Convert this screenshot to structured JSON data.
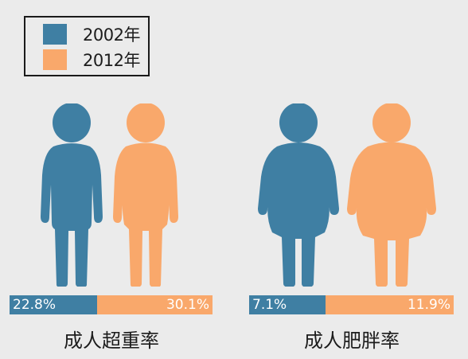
{
  "colors": {
    "y2002": "#3f7fa3",
    "y2012": "#f9a86b"
  },
  "legend": {
    "items": [
      {
        "label": "2002年",
        "color": "#3f7fa3"
      },
      {
        "label": "2012年",
        "color": "#f9a86b"
      }
    ]
  },
  "chart_data": [
    {
      "type": "bar",
      "title": "成人超重率",
      "categories": [
        "2002年",
        "2012年"
      ],
      "values": [
        22.8,
        30.1
      ],
      "value_labels": [
        "22.8%",
        "30.1%"
      ],
      "unit": "%"
    },
    {
      "type": "bar",
      "title": "成人肥胖率",
      "categories": [
        "2002年",
        "2012年"
      ],
      "values": [
        7.1,
        11.9
      ],
      "value_labels": [
        "7.1%",
        "11.9%"
      ],
      "unit": "%"
    }
  ],
  "icons": {
    "overweight_2002": "overweight-person-icon",
    "overweight_2012": "overweight-person-icon",
    "obese_2002": "obese-person-icon",
    "obese_2012": "obese-person-icon"
  }
}
